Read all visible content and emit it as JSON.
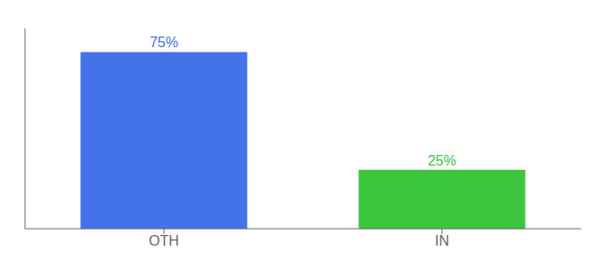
{
  "chart_data": {
    "type": "bar",
    "categories": [
      "OTH",
      "IN"
    ],
    "values": [
      75,
      25
    ],
    "value_labels": [
      "75%",
      "25%"
    ],
    "colors": [
      "#4472e8",
      "#3dc63d"
    ],
    "ylim": [
      0,
      85
    ],
    "grid": false,
    "data_labels": true,
    "tick_labels": "x"
  }
}
